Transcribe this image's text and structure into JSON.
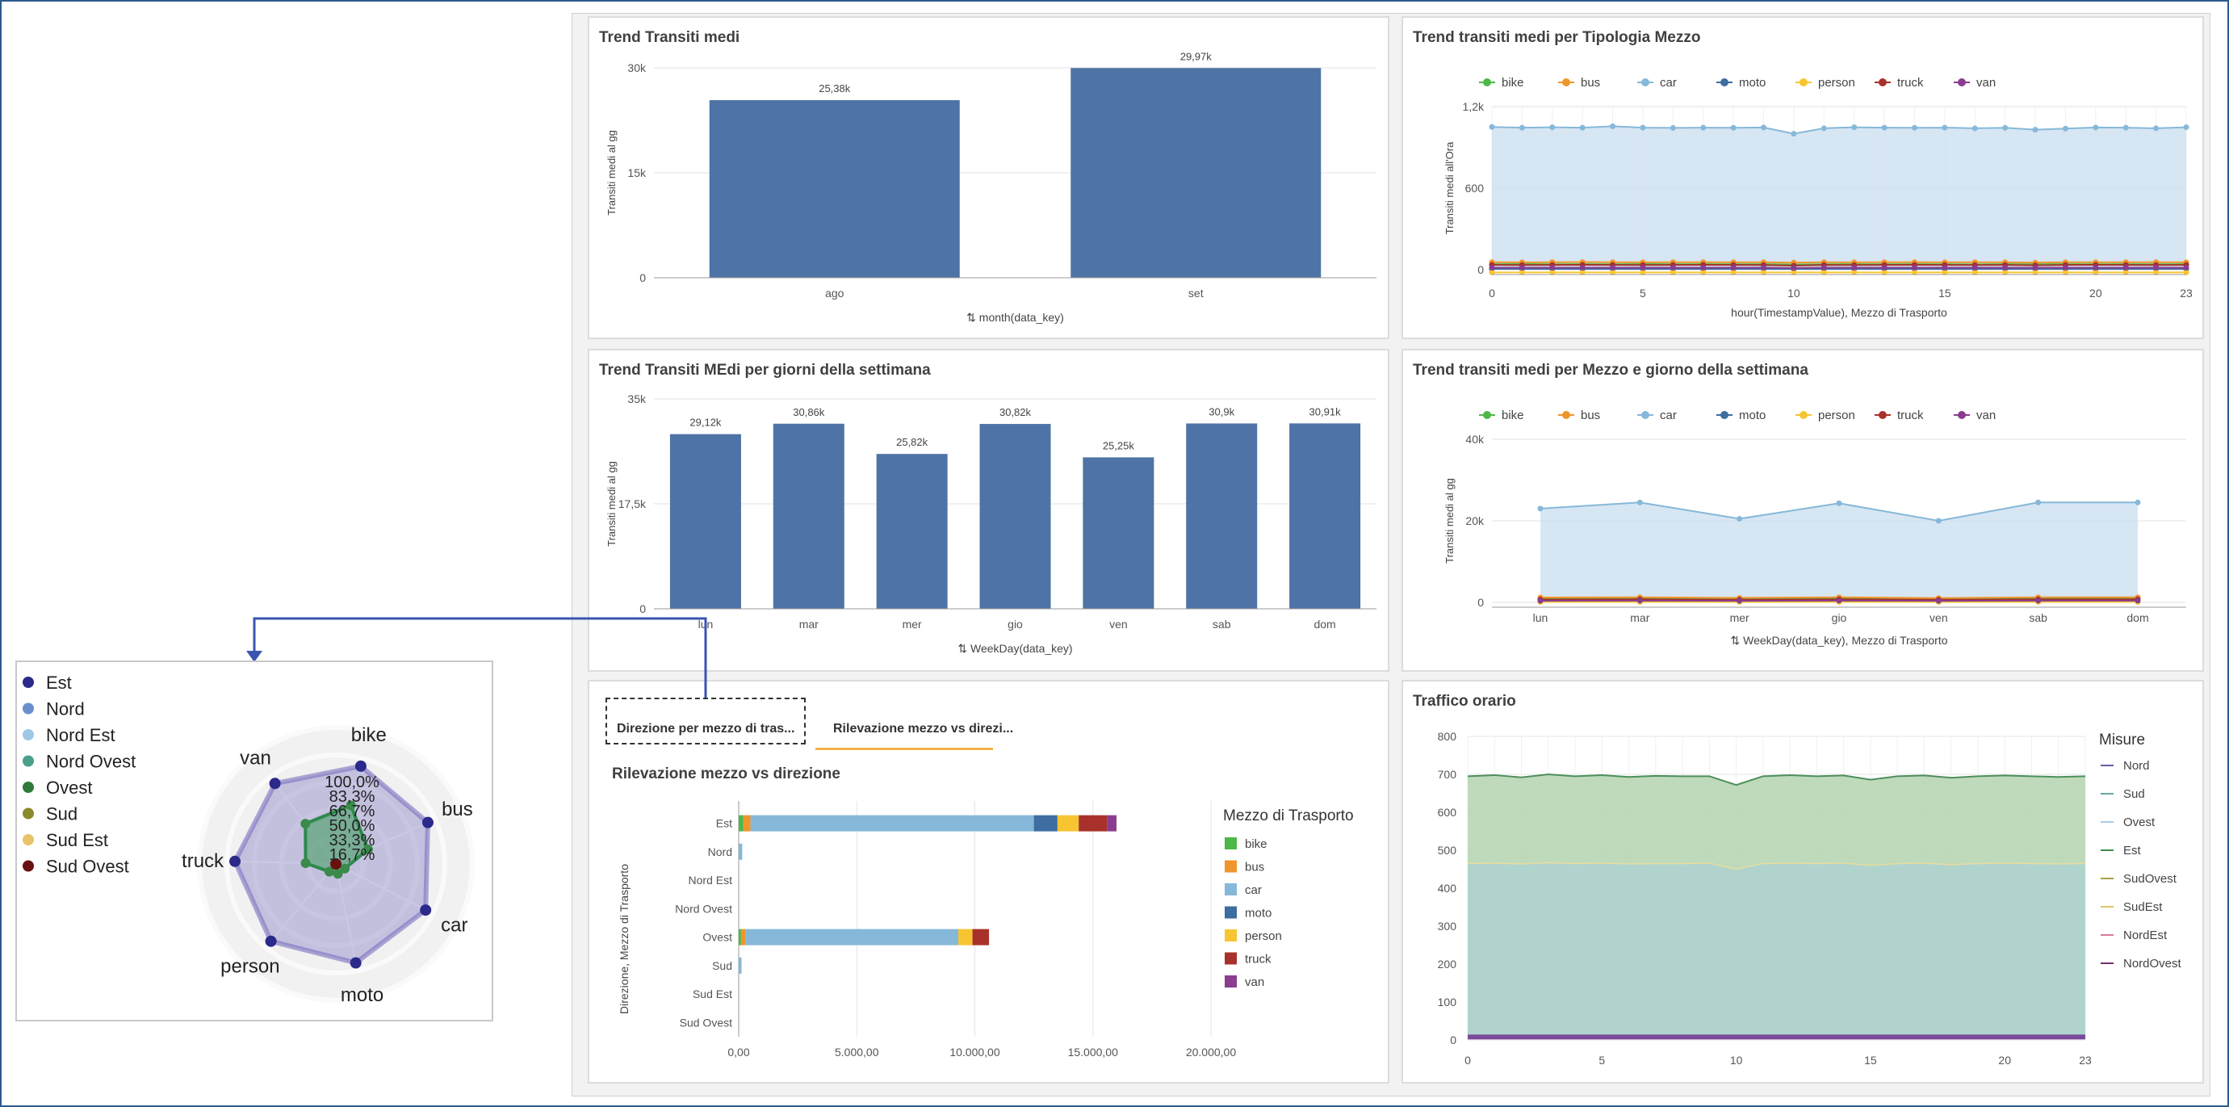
{
  "colors": {
    "bar": "#4e73a6",
    "area": "#cde0f0",
    "areaLine": "#98bcdc",
    "bike": "#4db848",
    "bus": "#f0952b",
    "car": "#86b8d9",
    "moto": "#3d6da1",
    "person": "#f7c531",
    "truck": "#a8322b",
    "van": "#8a3d8f"
  },
  "panel1": {
    "title": "Trend Transiti medi",
    "ylabel": "Transiti medi al gg",
    "xlabel": "month(data_key)",
    "xicon": "sort-icon"
  },
  "panel2": {
    "title": "Trend transiti medi per Tipologia Mezzo",
    "ylabel": "Transiti medi all'Ora",
    "xlabel": "hour(TimestampValue), Mezzo di Trasporto"
  },
  "panel3": {
    "title": "Trend Transiti MEdi per giorni della settimana",
    "ylabel": "Transiti medi al gg",
    "xlabel": "WeekDay(data_key)"
  },
  "panel4": {
    "title": "Trend transiti medi per Mezzo e giorno della settimana",
    "ylabel": "Transiti medi al gg",
    "xlabel": "WeekDay(data_key), Mezzo di Trasporto"
  },
  "panel5": {
    "tab1": "Direzione per mezzo di tras...",
    "tab2": "Rilevazione mezzo vs direzi...",
    "title": "Rilevazione mezzo vs direzione",
    "ylabel": "Direzione, Mezzo di Trasporto",
    "legendTitle": "Mezzo di Trasporto"
  },
  "panel6": {
    "title": "Traffico orario",
    "legendTitle": "Misure"
  },
  "radar_legend": [
    "Est",
    "Nord",
    "Nord Est",
    "Nord Ovest",
    "Ovest",
    "Sud",
    "Sud Est",
    "Sud Ovest"
  ],
  "chart_data": [
    {
      "type": "bar",
      "title": "Trend Transiti medi",
      "categories": [
        "ago",
        "set"
      ],
      "values": [
        25380,
        29970
      ],
      "labels": [
        "25,38k",
        "29,97k"
      ],
      "ylim": [
        0,
        30000
      ],
      "yticks": [
        "0",
        "15k",
        "30k"
      ],
      "ylabel": "Transiti medi al gg",
      "xlabel": "month(data_key)"
    },
    {
      "type": "line",
      "title": "Trend transiti medi per Tipologia Mezzo",
      "x": [
        0,
        1,
        2,
        3,
        4,
        5,
        6,
        7,
        8,
        9,
        10,
        11,
        12,
        13,
        14,
        15,
        16,
        17,
        18,
        19,
        20,
        21,
        22,
        23
      ],
      "series": [
        {
          "name": "car",
          "values": [
            1050,
            1045,
            1048,
            1045,
            1055,
            1045,
            1043,
            1045,
            1044,
            1046,
            1000,
            1040,
            1048,
            1045,
            1044,
            1045,
            1040,
            1044,
            1030,
            1038,
            1046,
            1045,
            1040,
            1048
          ]
        },
        {
          "name": "bike",
          "values": [
            40,
            42,
            40,
            41,
            40,
            42,
            40,
            41,
            40,
            41,
            38,
            40,
            41,
            40,
            41,
            40,
            39,
            41,
            40,
            41,
            40,
            41,
            40,
            41
          ]
        },
        {
          "name": "bus",
          "values": [
            55,
            54,
            55,
            56,
            55,
            54,
            55,
            55,
            54,
            55,
            52,
            55,
            54,
            55,
            55,
            54,
            55,
            54,
            52,
            55,
            54,
            55,
            55,
            54
          ]
        },
        {
          "name": "moto",
          "values": [
            5,
            5,
            5,
            5,
            5,
            5,
            5,
            5,
            5,
            5,
            5,
            5,
            5,
            5,
            5,
            5,
            5,
            5,
            5,
            5,
            5,
            5,
            5,
            5
          ]
        },
        {
          "name": "person",
          "values": [
            -20,
            -20,
            -20,
            -20,
            -20,
            -20,
            -20,
            -20,
            -20,
            -20,
            -20,
            -20,
            -20,
            -20,
            -20,
            -20,
            -20,
            -20,
            -20,
            -20,
            -20,
            -20,
            -20,
            -20
          ]
        },
        {
          "name": "truck",
          "values": [
            35,
            34,
            35,
            36,
            35,
            34,
            35,
            36,
            35,
            34,
            30,
            35,
            34,
            35,
            36,
            35,
            34,
            35,
            32,
            35,
            36,
            35,
            34,
            35
          ]
        },
        {
          "name": "van",
          "values": [
            15,
            15,
            15,
            15,
            15,
            15,
            15,
            15,
            15,
            15,
            12,
            15,
            15,
            15,
            15,
            15,
            15,
            15,
            14,
            15,
            15,
            15,
            15,
            15
          ]
        }
      ],
      "ylim": [
        0,
        1200
      ],
      "yticks": [
        "0",
        "600",
        "1,2k"
      ],
      "xticks": [
        "0",
        "5",
        "10",
        "15",
        "20",
        "23"
      ],
      "ylabel": "Transiti medi all'Ora",
      "xlabel": "hour(TimestampValue), Mezzo di Trasporto",
      "legend": "top"
    },
    {
      "type": "bar",
      "title": "Trend Transiti MEdi per giorni della settimana",
      "categories": [
        "lun",
        "mar",
        "mer",
        "gio",
        "ven",
        "sab",
        "dom"
      ],
      "values": [
        29120,
        30860,
        25820,
        30820,
        25250,
        30900,
        30910
      ],
      "labels": [
        "29,12k",
        "30,86k",
        "25,82k",
        "30,82k",
        "25,25k",
        "30,9k",
        "30,91k"
      ],
      "ylim": [
        0,
        35000
      ],
      "yticks": [
        "0",
        "17,5k",
        "35k"
      ],
      "ylabel": "Transiti medi al gg",
      "xlabel": "WeekDay(data_key)"
    },
    {
      "type": "line",
      "title": "Trend transiti medi per Mezzo e giorno della settimana",
      "categories": [
        "lun",
        "mar",
        "mer",
        "gio",
        "ven",
        "sab",
        "dom"
      ],
      "series": [
        {
          "name": "car",
          "values": [
            23000,
            24500,
            20500,
            24300,
            20000,
            24500,
            24500
          ]
        },
        {
          "name": "bike",
          "values": [
            900,
            950,
            800,
            950,
            780,
            950,
            950
          ]
        },
        {
          "name": "bus",
          "values": [
            1200,
            1250,
            1100,
            1250,
            1050,
            1250,
            1250
          ]
        },
        {
          "name": "moto",
          "values": [
            300,
            320,
            280,
            320,
            270,
            320,
            320
          ]
        },
        {
          "name": "person",
          "values": [
            100,
            100,
            90,
            100,
            90,
            100,
            100
          ]
        },
        {
          "name": "truck",
          "values": [
            700,
            750,
            650,
            750,
            640,
            750,
            750
          ]
        },
        {
          "name": "van",
          "values": [
            400,
            420,
            380,
            420,
            370,
            420,
            420
          ]
        }
      ],
      "ylim": [
        0,
        40000
      ],
      "yticks": [
        "0",
        "20k",
        "40k"
      ],
      "ylabel": "Transiti medi al gg",
      "xlabel": "WeekDay(data_key), Mezzo di Trasporto",
      "legend": "top"
    },
    {
      "type": "bar",
      "title": "Rilevazione mezzo vs direzione",
      "orientation": "horizontal",
      "stacked": true,
      "categories": [
        "Est",
        "Nord",
        "Nord Est",
        "Nord Ovest",
        "Ovest",
        "Sud",
        "Sud Est",
        "Sud Ovest"
      ],
      "series": [
        {
          "name": "bike",
          "values": [
            200,
            0,
            0,
            0,
            100,
            0,
            0,
            0
          ]
        },
        {
          "name": "bus",
          "values": [
            300,
            0,
            0,
            0,
            200,
            0,
            0,
            0
          ]
        },
        {
          "name": "car",
          "values": [
            12000,
            150,
            0,
            0,
            9000,
            120,
            0,
            0
          ]
        },
        {
          "name": "moto",
          "values": [
            1000,
            0,
            0,
            0,
            0,
            0,
            0,
            0
          ]
        },
        {
          "name": "person",
          "values": [
            900,
            0,
            0,
            0,
            600,
            0,
            0,
            0
          ]
        },
        {
          "name": "truck",
          "values": [
            1200,
            0,
            0,
            0,
            700,
            0,
            0,
            0
          ]
        },
        {
          "name": "van",
          "values": [
            400,
            0,
            0,
            0,
            0,
            0,
            0,
            0
          ]
        }
      ],
      "xlim": [
        0,
        20000
      ],
      "xticks": [
        "0,00",
        "5.000,00",
        "10.000,00",
        "15.000,00",
        "20.000,00"
      ],
      "ylabel": "Direzione, Mezzo di Trasporto",
      "legend": "right"
    },
    {
      "type": "area",
      "title": "Traffico orario",
      "x": [
        0,
        1,
        2,
        3,
        4,
        5,
        6,
        7,
        8,
        9,
        10,
        11,
        12,
        13,
        14,
        15,
        16,
        17,
        18,
        19,
        20,
        21,
        22,
        23
      ],
      "series": [
        {
          "name": "Nord",
          "values": [
            0,
            0,
            0,
            0,
            0,
            0,
            0,
            0,
            0,
            0,
            0,
            0,
            0,
            0,
            0,
            0,
            0,
            0,
            0,
            0,
            0,
            0,
            0,
            0
          ]
        },
        {
          "name": "Sud",
          "values": [
            230,
            232,
            228,
            233,
            230,
            232,
            229,
            231,
            230,
            229,
            222,
            230,
            232,
            230,
            231,
            226,
            230,
            231,
            229,
            230,
            231,
            230,
            229,
            230
          ]
        },
        {
          "name": "Ovest",
          "values": [
            0,
            0,
            0,
            0,
            0,
            0,
            0,
            0,
            0,
            0,
            0,
            0,
            0,
            0,
            0,
            0,
            0,
            0,
            0,
            0,
            0,
            0,
            0,
            0
          ]
        },
        {
          "name": "Est",
          "values": [
            465,
            466,
            464,
            467,
            465,
            466,
            464,
            465,
            465,
            466,
            450,
            465,
            466,
            465,
            466,
            460,
            465,
            466,
            462,
            465,
            466,
            465,
            464,
            465
          ]
        },
        {
          "name": "SudOvest",
          "values": [
            0,
            0,
            0,
            0,
            0,
            0,
            0,
            0,
            0,
            0,
            0,
            0,
            0,
            0,
            0,
            0,
            0,
            0,
            0,
            0,
            0,
            0,
            0,
            0
          ]
        },
        {
          "name": "SudEst",
          "values": [
            0,
            0,
            0,
            0,
            0,
            0,
            0,
            0,
            0,
            0,
            0,
            0,
            0,
            0,
            0,
            0,
            0,
            0,
            0,
            0,
            0,
            0,
            0,
            0
          ]
        },
        {
          "name": "NordEst",
          "values": [
            0,
            0,
            0,
            0,
            0,
            0,
            0,
            0,
            0,
            0,
            0,
            0,
            0,
            0,
            0,
            0,
            0,
            0,
            0,
            0,
            0,
            0,
            0,
            0
          ]
        },
        {
          "name": "NordOvest",
          "values": [
            10,
            10,
            10,
            10,
            10,
            10,
            10,
            10,
            10,
            10,
            10,
            10,
            10,
            10,
            10,
            10,
            10,
            10,
            10,
            10,
            10,
            10,
            10,
            10
          ]
        }
      ],
      "ylim": [
        0,
        800
      ],
      "yticks": [
        "0",
        "100",
        "200",
        "300",
        "400",
        "500",
        "600",
        "700",
        "800"
      ],
      "xticks": [
        "0",
        "5",
        "10",
        "15",
        "20",
        "23"
      ],
      "legend": "right"
    },
    {
      "type": "radar",
      "categories": [
        "bike",
        "bus",
        "car",
        "moto",
        "person",
        "truck",
        "van"
      ],
      "rlabels": [
        "16,7%",
        "33,3%",
        "50,0%",
        "66,7%",
        "83,3%",
        "100,0%"
      ],
      "series": [
        {
          "name": "Est",
          "values": [
            1.0,
            1.0,
            1.0,
            1.0,
            1.0,
            1.0,
            1.0
          ]
        },
        {
          "name": "Ovest",
          "values": [
            0.6,
            0.35,
            0.1,
            0.1,
            0.1,
            0.3,
            0.5
          ]
        }
      ],
      "legend": "left"
    }
  ]
}
